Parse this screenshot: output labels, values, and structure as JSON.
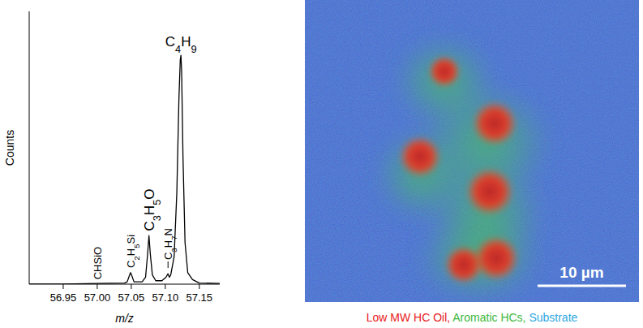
{
  "chart_data": {
    "type": "line",
    "x_label": "m/z",
    "y_label": "Counts",
    "x": [
      56.9,
      56.95,
      57.0,
      57.04,
      57.044,
      57.047,
      57.049,
      57.051,
      57.054,
      57.066,
      57.071,
      57.074,
      57.076,
      57.078,
      57.081,
      57.086,
      57.095,
      57.101,
      57.104,
      57.106,
      57.108,
      57.113,
      57.117,
      57.12,
      57.122,
      57.123,
      57.124,
      57.126,
      57.129,
      57.133,
      57.14,
      57.15,
      57.18
    ],
    "values": [
      0,
      0,
      0.3,
      0.5,
      1,
      3.5,
      5,
      3.5,
      1,
      1,
      3,
      13,
      21,
      13,
      4,
      1.5,
      1.5,
      3,
      4.5,
      3,
      4,
      12,
      40,
      80,
      97,
      99,
      92,
      55,
      18,
      5,
      2,
      0.5,
      0.3
    ],
    "color": "#000000",
    "xlim": [
      56.9,
      57.18
    ],
    "xticks": [
      56.95,
      {
        "value": 57,
        "label": "57.00"
      },
      57.05,
      {
        "value": 57.1,
        "label": "57.10"
      },
      57.15
    ],
    "ylim": [
      0,
      118
    ],
    "tick_labels": "x",
    "annotations": [
      {
        "text": "CHSiO",
        "x": 57.001,
        "y": 2
      },
      {
        "text": "C2H5Si",
        "x": 57.049,
        "y": 7
      },
      {
        "text": "C3H5O",
        "x": 57.076,
        "y": 23
      },
      {
        "text": "C3H7N",
        "x": 57.104,
        "y": 7
      },
      {
        "text": "C4H9",
        "x": 57.123,
        "y": 103
      }
    ]
  },
  "image": {
    "legend": [
      {
        "label": "Low MW HC Oil,",
        "color": "#e8201c"
      },
      {
        "label": "Aromatic HCs,",
        "color": "#3db83d"
      },
      {
        "label": "Substrate",
        "color": "#2fa8e0"
      }
    ],
    "scale_bar": "10 µm"
  }
}
